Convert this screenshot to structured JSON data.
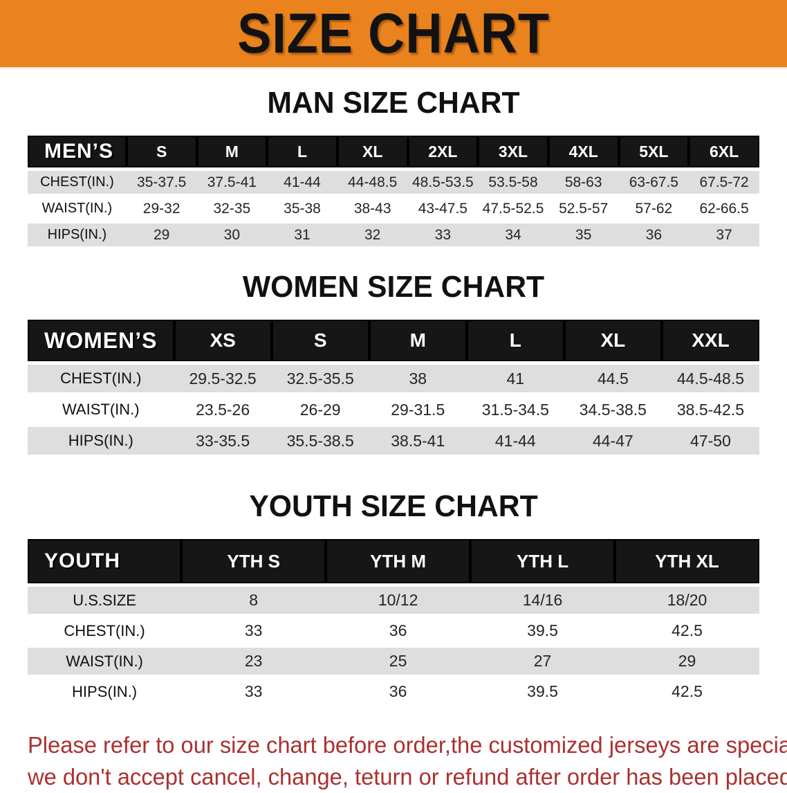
{
  "banner": {
    "title": "SIZE CHART"
  },
  "colors": {
    "banner_bg": "#EA831D",
    "table_header_bg": "#161616",
    "row_stripe": "#DEDEDE",
    "disclaimer_text": "#A93130"
  },
  "sections": [
    {
      "heading": "MAN SIZE CHART",
      "header_label": "MEN’S",
      "columns": [
        "S",
        "M",
        "L",
        "XL",
        "2XL",
        "3XL",
        "4XL",
        "5XL",
        "6XL"
      ],
      "rows": [
        {
          "label": "CHEST(IN.)",
          "values": [
            "35-37.5",
            "37.5-41",
            "41-44",
            "44-48.5",
            "48.5-53.5",
            "53.5-58",
            "58-63",
            "63-67.5",
            "67.5-72"
          ]
        },
        {
          "label": "WAIST(IN.)",
          "values": [
            "29-32",
            "32-35",
            "35-38",
            "38-43",
            "43-47.5",
            "47.5-52.5",
            "52.5-57",
            "57-62",
            "62-66.5"
          ]
        },
        {
          "label": "HIPS(IN.)",
          "values": [
            "29",
            "30",
            "31",
            "32",
            "33",
            "34",
            "35",
            "36",
            "37"
          ]
        }
      ]
    },
    {
      "heading": "WOMEN SIZE CHART",
      "header_label": "WOMEN’S",
      "columns": [
        "XS",
        "S",
        "M",
        "L",
        "XL",
        "XXL"
      ],
      "rows": [
        {
          "label": "CHEST(IN.)",
          "values": [
            "29.5-32.5",
            "32.5-35.5",
            "38",
            "41",
            "44.5",
            "44.5-48.5"
          ]
        },
        {
          "label": "WAIST(IN.)",
          "values": [
            "23.5-26",
            "26-29",
            "29-31.5",
            "31.5-34.5",
            "34.5-38.5",
            "38.5-42.5"
          ]
        },
        {
          "label": "HIPS(IN.)",
          "values": [
            "33-35.5",
            "35.5-38.5",
            "38.5-41",
            "41-44",
            "44-47",
            "47-50"
          ]
        }
      ]
    },
    {
      "heading": "YOUTH SIZE CHART",
      "header_label": "YOUTH",
      "columns": [
        "YTH S",
        "YTH M",
        "YTH L",
        "YTH XL"
      ],
      "rows": [
        {
          "label": "U.S.SIZE",
          "values": [
            "8",
            "10/12",
            "14/16",
            "18/20"
          ]
        },
        {
          "label": "CHEST(IN.)",
          "values": [
            "33",
            "36",
            "39.5",
            "42.5"
          ]
        },
        {
          "label": "WAIST(IN.)",
          "values": [
            "23",
            "25",
            "27",
            "29"
          ]
        },
        {
          "label": "HIPS(IN.)",
          "values": [
            "33",
            "36",
            "39.5",
            "42.5"
          ]
        }
      ]
    }
  ],
  "disclaimer": {
    "line1": "Please refer to our size chart before order,the customized jerseys are special products,",
    "line2": "we don't accept cancel, change, teturn or refund after order has been placed!"
  }
}
